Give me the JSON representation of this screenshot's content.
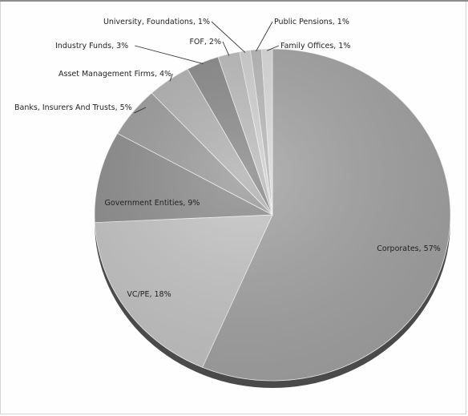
{
  "chart_data": {
    "type": "pie",
    "title": "",
    "slices": [
      {
        "label": "Corporates",
        "value": 57,
        "text": "Corporates, 57%",
        "color": "#a4a4a4"
      },
      {
        "label": "VC/PE",
        "value": 18,
        "text": "VC/PE, 18%",
        "color": "#c6c6c6"
      },
      {
        "label": "Government Entities",
        "value": 9,
        "text": "Government Entities, 9%",
        "color": "#8e8e8e"
      },
      {
        "label": "Banks, Insurers And Trusts",
        "value": 5,
        "text": "Banks, Insurers And Trusts, 5%",
        "color": "#9c9c9c"
      },
      {
        "label": "Asset Management Firms",
        "value": 4,
        "text": "Asset Management Firms, 4%",
        "color": "#b2b2b2"
      },
      {
        "label": "Industry Funds",
        "value": 3,
        "text": "Industry Funds, 3%",
        "color": "#8a8a8a"
      },
      {
        "label": "FOF",
        "value": 2,
        "text": "FOF, 2%",
        "color": "#bcbcbc"
      },
      {
        "label": "University, Foundations",
        "value": 1,
        "text": "University, Foundations, 1%",
        "color": "#d0d0d0"
      },
      {
        "label": "Public Pensions",
        "value": 1,
        "text": "Public Pensions, 1%",
        "color": "#b8b8b8"
      },
      {
        "label": "Family Offices",
        "value": 1,
        "text": "Family Offices, 1%",
        "color": "#dadada"
      }
    ],
    "legend": "none"
  }
}
